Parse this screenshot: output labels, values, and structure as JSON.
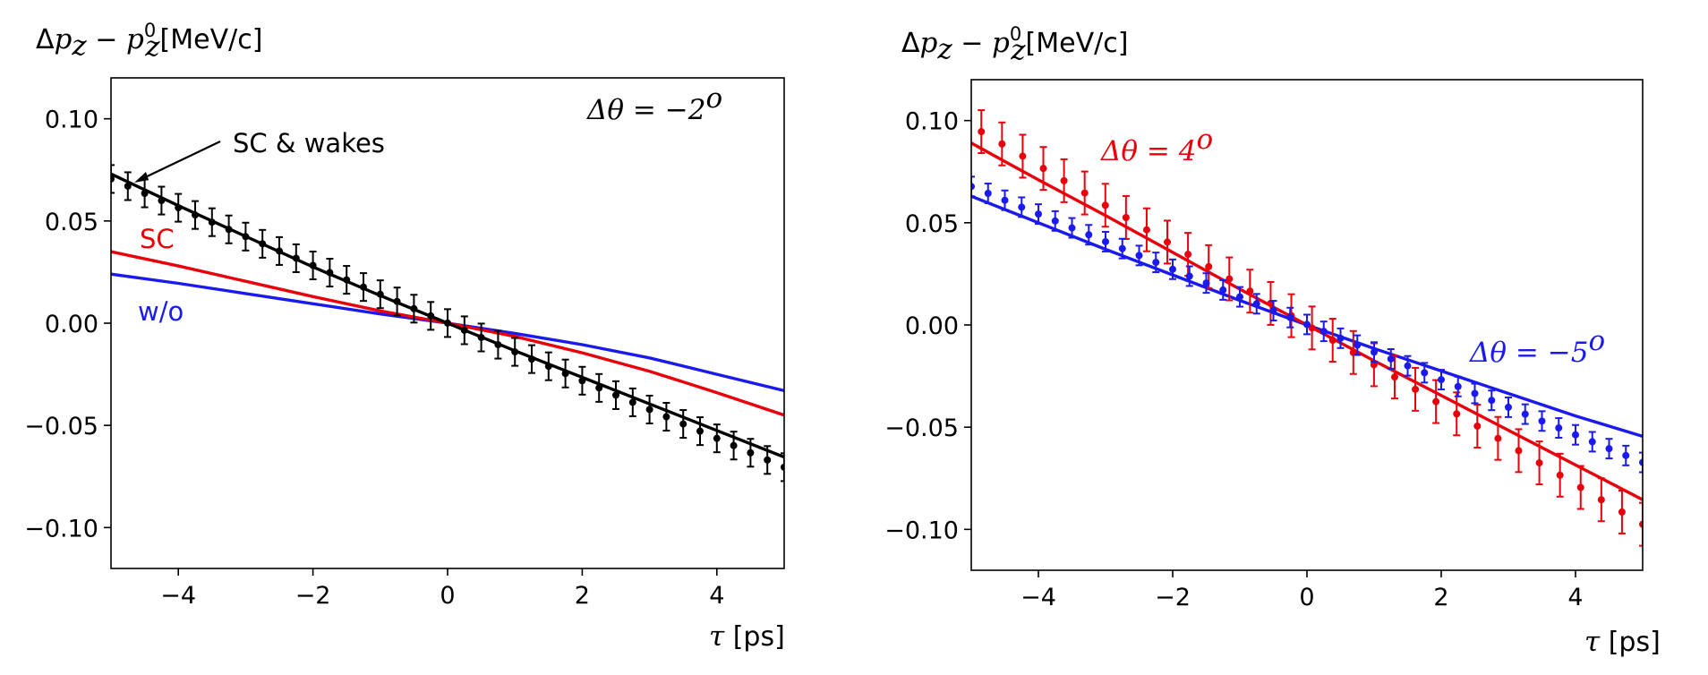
{
  "chart_data": [
    {
      "type": "line",
      "ylabel": "Δp_z − p_z^0[MeV/c]",
      "ylabel_parts": {
        "delta": "Δ",
        "p": "p",
        "sub": "z",
        "minus": " − ",
        "p0": "p",
        "sup0": "0",
        "sub0": "z",
        "unit": "[MeV/c]"
      },
      "xlabel": "τ [ps]",
      "xlabel_parts": {
        "tau": "τ",
        "unit": " [ps]"
      },
      "xlim": [
        -5,
        5
      ],
      "ylim": [
        -0.12,
        0.12
      ],
      "xticks": [
        -4,
        -2,
        0,
        2,
        4
      ],
      "xtick_labels": [
        "−4",
        "−2",
        "0",
        "2",
        "4"
      ],
      "yticks": [
        0.1,
        0.05,
        0.0,
        -0.05,
        -0.1
      ],
      "ytick_labels": [
        "0.10",
        "0.05",
        "0.00",
        "−0.05",
        "−0.10"
      ],
      "annotation": {
        "text": "Δθ = −2",
        "sup": "o"
      },
      "series": [
        {
          "name": "SC & wakes",
          "color": "#000000",
          "line": {
            "x": [
              -5,
              -4,
              -3,
              -2,
              -1,
              0,
              1,
              2,
              3,
              4,
              5
            ],
            "y": [
              0.073,
              0.0575,
              0.0425,
              0.0275,
              0.0135,
              0.0,
              -0.0135,
              -0.0265,
              -0.0395,
              -0.0525,
              -0.0655
            ]
          },
          "points": {
            "x0": -5.0,
            "x1": 5.0,
            "n": 41,
            "a": -0.0141,
            "c": 5e-05,
            "err": 0.0068
          }
        },
        {
          "name": "SC",
          "color": "#e8000b",
          "line": {
            "x": [
              -5,
              -4,
              -3,
              -2,
              -1,
              0,
              1,
              2,
              3,
              4,
              5
            ],
            "y": [
              0.035,
              0.028,
              0.0205,
              0.013,
              0.006,
              0.0,
              -0.0065,
              -0.0145,
              -0.0235,
              -0.034,
              -0.045
            ]
          }
        },
        {
          "name": "w/o",
          "color": "#1a1aee",
          "line": {
            "x": [
              -5,
              -4,
              -3,
              -2,
              -1,
              0,
              1,
              2,
              3,
              4,
              5
            ],
            "y": [
              0.024,
              0.0195,
              0.0145,
              0.0095,
              0.0045,
              0.0,
              -0.005,
              -0.0105,
              -0.017,
              -0.025,
              -0.033
            ]
          }
        }
      ],
      "labels": {
        "sc_wakes": "SC & wakes",
        "sc": "SC",
        "wo": "w/o"
      }
    },
    {
      "type": "line",
      "ylabel": "Δp_z − p_z^0[MeV/c]",
      "ylabel_parts": {
        "delta": "Δ",
        "p": "p",
        "sub": "z",
        "minus": " − ",
        "p0": "p",
        "sup0": "0",
        "sub0": "z",
        "unit": "[MeV/c]"
      },
      "xlabel": "τ [ps]",
      "xlabel_parts": {
        "tau": "τ",
        "unit": " [ps]"
      },
      "xlim": [
        -5,
        5
      ],
      "ylim": [
        -0.12,
        0.12
      ],
      "xticks": [
        -4,
        -2,
        0,
        2,
        4
      ],
      "xtick_labels": [
        "−4",
        "−2",
        "0",
        "2",
        "4"
      ],
      "yticks": [
        0.1,
        0.05,
        0.0,
        -0.05,
        -0.1
      ],
      "ytick_labels": [
        "0.10",
        "0.05",
        "0.00",
        "−0.05",
        "−0.10"
      ],
      "series": [
        {
          "name": "Δθ = 4o",
          "color": "#e8000b",
          "line": {
            "x": [
              -5,
              -4,
              -3,
              -2,
              -1,
              0,
              1,
              2,
              3,
              4,
              5
            ],
            "y": [
              0.089,
              0.071,
              0.0535,
              0.0355,
              0.0175,
              0.0,
              -0.0175,
              -0.0345,
              -0.0515,
              -0.0685,
              -0.0855
            ]
          },
          "points": {
            "x0": -4.85,
            "x1": 5.0,
            "n": 33,
            "a": -0.0195,
            "c": 0.0,
            "err": 0.0105
          }
        },
        {
          "name": "Δθ = −5o",
          "color": "#1a1aee",
          "line": {
            "x": [
              -5,
              -4,
              -3,
              -2,
              -1,
              0,
              1,
              2,
              3,
              4,
              5
            ],
            "y": [
              0.063,
              0.05,
              0.037,
              0.0245,
              0.012,
              0.0,
              -0.0115,
              -0.0225,
              -0.0335,
              -0.0445,
              -0.0545
            ]
          },
          "points": {
            "x0": -5.0,
            "x1": 5.0,
            "n": 41,
            "a": -0.0135,
            "c": 0.00025,
            "err": 0.0048
          }
        }
      ],
      "labels": {
        "red": {
          "text": "Δθ = 4",
          "sup": "o"
        },
        "blue": {
          "text": "Δθ = −5",
          "sup": "o"
        }
      }
    }
  ]
}
